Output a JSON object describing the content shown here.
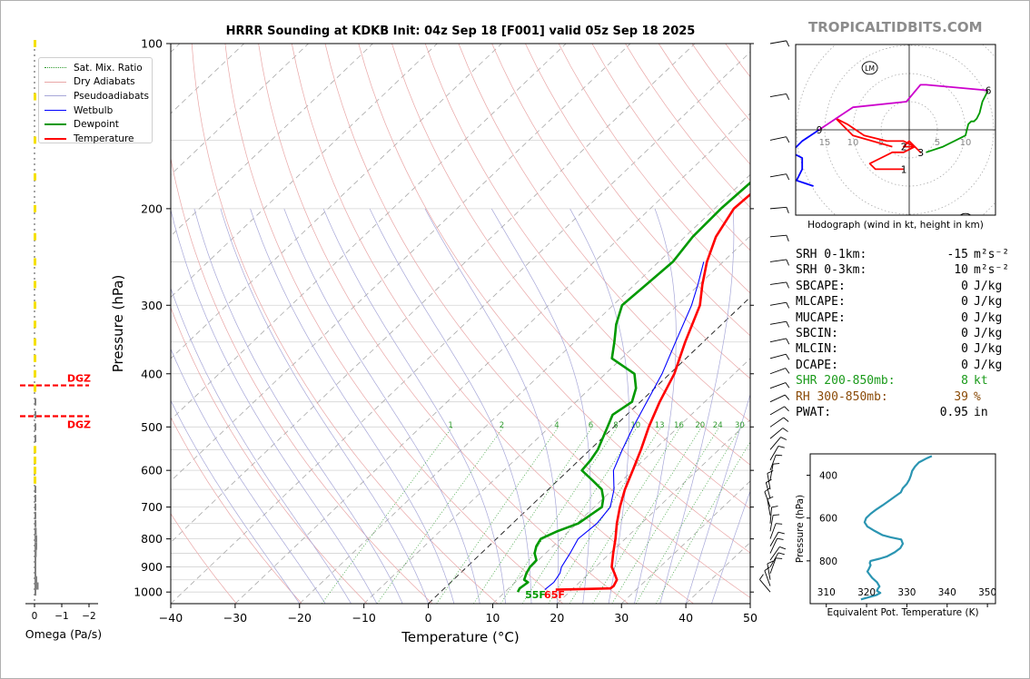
{
  "branding": {
    "site": "TROPICALTIDBITS.COM"
  },
  "chart_data": [
    {
      "type": "line",
      "title": "HRRR Sounding at KDKB Init: 04z Sep 18 [F001] valid 05z Sep 18 2025",
      "xlabel": "Temperature (°C)",
      "ylabel": "Pressure (hPa)",
      "xlim": [
        -40,
        50
      ],
      "ylim": [
        1050,
        100
      ],
      "yscale": "log",
      "x_ticks": [
        "−40",
        "−30",
        "−20",
        "−10",
        "0",
        "10",
        "20",
        "30",
        "40",
        "50"
      ],
      "x_tick_values": [
        -40,
        -30,
        -20,
        -10,
        0,
        10,
        20,
        30,
        40,
        50
      ],
      "y_ticks": [
        "100",
        "200",
        "300",
        "400",
        "500",
        "600",
        "700",
        "800",
        "900",
        "1000"
      ],
      "y_tick_values": [
        100,
        200,
        300,
        400,
        500,
        600,
        700,
        800,
        900,
        1000
      ],
      "legend": [
        "Sat. Mix. Ratio",
        "Dry Adiabats",
        "Pseudoadiabats",
        "Wetbulb",
        "Dewpoint",
        "Temperature"
      ],
      "mixing_ratio_labels": [
        "1",
        "2",
        "4",
        "6",
        "8",
        "10",
        "13",
        "16",
        "20",
        "24",
        "30",
        "36"
      ],
      "mixing_ratio_values": [
        1,
        2,
        4,
        6,
        8,
        10,
        13,
        16,
        20,
        24,
        30,
        36
      ],
      "surface_labels": {
        "dewpoint": "55F",
        "temperature": "65F"
      },
      "colors": {
        "temperature": "#ff0000",
        "dewpoint": "#009900",
        "wetbulb": "#0000ff",
        "mixing": "#2e9a2e",
        "dry": "#e08080",
        "moist": "#8080d0"
      },
      "series": [
        {
          "name": "Temperature",
          "p": [
            990,
            985,
            975,
            950,
            925,
            900,
            850,
            800,
            750,
            700,
            650,
            600,
            550,
            500,
            450,
            400,
            350,
            300,
            275,
            250,
            225,
            200,
            175,
            150,
            125,
            100
          ],
          "t": [
            17.5,
            25.8,
            25.9,
            25.4,
            24.0,
            22.5,
            20.5,
            18.5,
            16.2,
            14.0,
            11.9,
            10.0,
            7.9,
            5.4,
            3.0,
            0.7,
            -2.8,
            -6.5,
            -9.5,
            -12.5,
            -15.2,
            -17.0,
            -16.5,
            -14.2,
            -9.9,
            -4.3
          ]
        },
        {
          "name": "Dewpoint",
          "p": [
            1000,
            985,
            960,
            950,
            925,
            900,
            875,
            850,
            825,
            800,
            775,
            750,
            700,
            675,
            650,
            625,
            600,
            575,
            550,
            500,
            475,
            450,
            425,
            400,
            375,
            350,
            325,
            300,
            275,
            250,
            225,
            200,
            175,
            150,
            125,
            100
          ],
          "t": [
            12.0,
            11.7,
            12.0,
            11.0,
            10.3,
            9.8,
            9.7,
            8.3,
            7.4,
            6.9,
            8.2,
            10.2,
            11.2,
            10.0,
            8.3,
            5.3,
            2.1,
            1.8,
            1.2,
            -1.0,
            -2.2,
            -1.3,
            -2.9,
            -5.5,
            -11.5,
            -13.8,
            -16.4,
            -18.6,
            -18.2,
            -17.8,
            -18.8,
            -19.0,
            -18.6,
            -19.1,
            -20.0,
            -16.2
          ]
        },
        {
          "name": "Wetbulb",
          "p": [
            990,
            960,
            925,
            900,
            850,
            800,
            750,
            700,
            650,
            600,
            550,
            500,
            450,
            400,
            350,
            300,
            275,
            250
          ],
          "t": [
            15.8,
            16.0,
            15.5,
            14.7,
            13.8,
            12.7,
            13.1,
            12.5,
            10.2,
            7.0,
            5.0,
            3.0,
            1.0,
            -1.2,
            -4.3,
            -7.8,
            -10.2,
            -13.0
          ]
        }
      ],
      "omega": {
        "xlabel": "Omega (Pa/s)",
        "x_ticks": [
          "0",
          "−1",
          "−2"
        ],
        "x_tick_values": [
          0,
          -1,
          -2
        ],
        "dgz_label": "DGZ",
        "dgz_pressures": [
          420,
          478
        ],
        "bars_p": [
          1000,
          975,
          950,
          925,
          900,
          875,
          850,
          825,
          800,
          775,
          750,
          725,
          700,
          675,
          650,
          625,
          600,
          575,
          550,
          525,
          500,
          475,
          450,
          425,
          400,
          375,
          350,
          325,
          300,
          275,
          250,
          225,
          200,
          175,
          150,
          125,
          100
        ],
        "bars_v": [
          -0.05,
          -0.15,
          -0.1,
          -0.05,
          -0.05,
          -0.05,
          -0.08,
          -0.1,
          -0.1,
          -0.08,
          -0.07,
          -0.05,
          -0.03,
          -0.02,
          -0.02,
          0.02,
          0.02,
          0.03,
          0.03,
          -0.03,
          -0.05,
          -0.05,
          -0.04,
          0.03,
          0.05,
          0.04,
          0.03,
          0.02,
          0.02,
          0.02,
          0.02,
          0.02,
          0.02,
          0.02,
          0.03,
          0.02,
          0.02
        ]
      }
    },
    {
      "type": "line",
      "title": "Hodograph (wind in kt, height in km)",
      "ring_labels": [
        "15",
        "10",
        "5",
        "5",
        "10"
      ],
      "ring_label_values": [
        -15,
        -10,
        -5,
        5,
        10
      ],
      "storm_motion_labels": [
        "LM",
        "RM"
      ],
      "storm_motion": {
        "LM": [
          -7,
          11
        ],
        "RM": [
          10,
          -16
        ]
      },
      "height_labels": [
        "1",
        "2",
        "3",
        "6",
        "9"
      ],
      "height_points": {
        "1": [
          -1,
          -7
        ],
        "2": [
          -1,
          -3
        ],
        "3": [
          2,
          -4
        ],
        "6": [
          14,
          7
        ],
        "9": [
          -16,
          0
        ]
      },
      "segments": [
        {
          "name": "0-3 km",
          "color": "#ff0000",
          "u": [
            -1,
            -3,
            -6,
            -7,
            -5,
            -3,
            -1,
            1,
            -1,
            -1,
            0,
            2,
            1,
            -1,
            -4,
            -8,
            -11,
            -13,
            -10,
            -3
          ],
          "v": [
            -7,
            -7,
            -7,
            -6,
            -5,
            -4,
            -4,
            -3,
            -3,
            -3,
            -2,
            -4,
            -3,
            -2,
            -2,
            -1,
            1,
            2,
            -1,
            -3
          ]
        },
        {
          "name": "3-6 km",
          "color": "#009900",
          "u": [
            3,
            6,
            8,
            10,
            10.5,
            11,
            11.5,
            12,
            12.5,
            13,
            14
          ],
          "v": [
            -4,
            -3,
            -2,
            -1,
            1,
            1.5,
            1.5,
            2,
            3,
            5,
            7
          ]
        },
        {
          "name": "6-9 km",
          "color": "#cc00cc",
          "u": [
            14,
            3,
            2,
            -0.5,
            -0.5,
            -10,
            -13,
            -16
          ],
          "v": [
            7,
            8,
            8,
            5,
            5,
            4,
            2,
            0
          ]
        },
        {
          "name": "9+ km",
          "color": "#0000ff",
          "u": [
            -16,
            -19,
            -21,
            -19,
            -19,
            -19,
            -20,
            -17
          ],
          "v": [
            0,
            -2,
            -4,
            -5,
            -6,
            -7,
            -9,
            -10
          ]
        }
      ]
    },
    {
      "type": "line",
      "title": "",
      "xlabel": "Equivalent Pot. Temperature (K)",
      "ylabel": "Pressure (hPa)",
      "xlim": [
        306,
        352
      ],
      "ylim": [
        1000,
        300
      ],
      "x_ticks": [
        "310",
        "320",
        "330",
        "340",
        "350"
      ],
      "x_tick_values": [
        310,
        320,
        330,
        340,
        350
      ],
      "y_ticks": [
        "400",
        "600",
        "800"
      ],
      "y_tick_values": [
        400,
        600,
        800
      ],
      "series": [
        {
          "name": "Theta-e",
          "color": "#2b95b2",
          "p": [
            980,
            970,
            960,
            950,
            940,
            930,
            920,
            900,
            880,
            860,
            850,
            840,
            820,
            810,
            800,
            790,
            780,
            760,
            740,
            720,
            700,
            690,
            680,
            660,
            640,
            620,
            600,
            580,
            560,
            540,
            520,
            500,
            480,
            460,
            440,
            420,
            400,
            380,
            360,
            340,
            320,
            310
          ],
          "x": [
            318.6,
            320.5,
            322.4,
            323.4,
            322.6,
            322.8,
            323.2,
            322.6,
            321.4,
            320.6,
            320.2,
            320.5,
            321.0,
            320.8,
            321.0,
            323.2,
            325.0,
            327.0,
            328.4,
            329.0,
            328.6,
            326.0,
            324.0,
            322.0,
            320.2,
            319.5,
            319.9,
            321.0,
            322.4,
            324.0,
            325.5,
            327.0,
            328.5,
            329.0,
            330.0,
            330.6,
            331.0,
            331.3,
            332.0,
            333.0,
            335.0,
            336.2
          ]
        }
      ]
    }
  ],
  "params": [
    {
      "label": "SRH 0-1km:",
      "value": "-15",
      "unit": "m²s⁻²",
      "color": "#000000"
    },
    {
      "label": "SRH 0-3km:",
      "value": "10",
      "unit": "m²s⁻²",
      "color": "#000000"
    },
    {
      "label": "SBCAPE:",
      "value": "0",
      "unit": "J/kg",
      "color": "#000000"
    },
    {
      "label": "MLCAPE:",
      "value": "0",
      "unit": "J/kg",
      "color": "#000000"
    },
    {
      "label": "MUCAPE:",
      "value": "0",
      "unit": "J/kg",
      "color": "#000000"
    },
    {
      "label": "SBCIN:",
      "value": "0",
      "unit": "J/kg",
      "color": "#000000"
    },
    {
      "label": "MLCIN:",
      "value": "0",
      "unit": "J/kg",
      "color": "#000000"
    },
    {
      "label": "DCAPE:",
      "value": "0",
      "unit": "J/kg",
      "color": "#000000"
    },
    {
      "label": "SHR 200-850mb:",
      "value": "8",
      "unit": "kt",
      "color": "#1a9a1a"
    },
    {
      "label": "RH 300-850mb:",
      "value": "39",
      "unit": "%",
      "color": "#8a4b08"
    },
    {
      "label": "PWAT:",
      "value": "0.95",
      "unit": "in",
      "color": "#000000"
    }
  ]
}
